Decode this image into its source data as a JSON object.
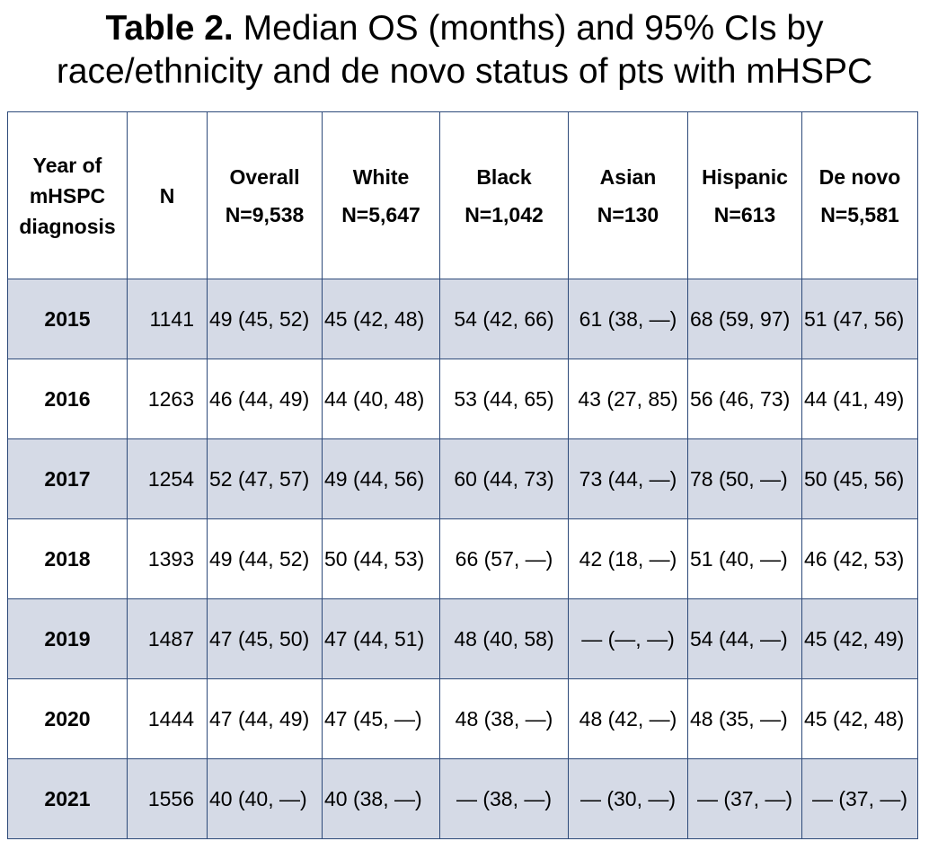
{
  "title": {
    "bold": "Table 2.",
    "rest_line1": " Median OS (months) and 95% CIs by",
    "line2": "race/ethnicity and de novo status of pts with mHSPC"
  },
  "table": {
    "header": {
      "year": [
        "Year of",
        "mHSPC",
        "diagnosis"
      ],
      "n": "N",
      "groups": [
        {
          "name": "Overall",
          "n": "N=9,538"
        },
        {
          "name": "White",
          "n": "N=5,647"
        },
        {
          "name": "Black",
          "n": "N=1,042"
        },
        {
          "name": "Asian",
          "n": "N=130"
        },
        {
          "name": "Hispanic",
          "n": "N=613"
        },
        {
          "name": "De novo",
          "n": "N=5,581"
        }
      ]
    },
    "rows": [
      {
        "year": "2015",
        "n": "1141",
        "values": [
          "49 (45, 52)",
          "45 (42, 48)",
          "54 (42, 66)",
          "61 (38, —)",
          "68 (59, 97)",
          "51 (47, 56)"
        ]
      },
      {
        "year": "2016",
        "n": "1263",
        "values": [
          "46 (44, 49)",
          "44 (40, 48)",
          "53 (44, 65)",
          "43 (27, 85)",
          "56 (46, 73)",
          "44 (41, 49)"
        ]
      },
      {
        "year": "2017",
        "n": "1254",
        "values": [
          "52 (47, 57)",
          "49 (44, 56)",
          "60 (44, 73)",
          "73 (44, —)",
          "78 (50, —)",
          "50 (45, 56)"
        ]
      },
      {
        "year": "2018",
        "n": "1393",
        "values": [
          "49 (44, 52)",
          "50 (44, 53)",
          "66 (57, —)",
          "42 (18, —)",
          "51 (40, —)",
          "46 (42, 53)"
        ]
      },
      {
        "year": "2019",
        "n": "1487",
        "values": [
          "47 (45, 50)",
          "47 (44, 51)",
          "48 (40, 58)",
          "— (—, —)",
          "54 (44, —)",
          "45 (42, 49)"
        ]
      },
      {
        "year": "2020",
        "n": "1444",
        "values": [
          "47 (44, 49)",
          "47 (45, —)",
          "48 (38, —)",
          "48 (42, —)",
          "48 (35, —)",
          "45 (42, 48)"
        ]
      },
      {
        "year": "2021",
        "n": "1556",
        "values": [
          "40 (40, —)",
          "40 (38, —)",
          "— (38, —)",
          "— (30, —)",
          "— (37, —)",
          "— (37, —)"
        ]
      }
    ]
  },
  "colors": {
    "border": "#2e4a7a",
    "stripe": "#d5dae6"
  }
}
